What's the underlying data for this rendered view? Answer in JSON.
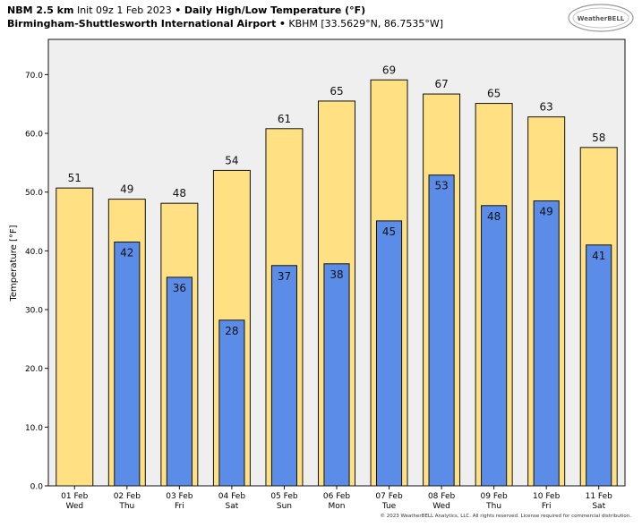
{
  "header": {
    "model": "NBM 2.5 km",
    "init": "Init 09z 1 Feb 2023",
    "sep": "•",
    "product": "Daily High/Low Temperature (°F)",
    "station_name": "Birmingham-Shuttlesworth International Airport",
    "station_info": "KBHM [33.5629°N, 86.7535°W]"
  },
  "logo": {
    "text": "WeatherBELL"
  },
  "copyright": "© 2023 WeatherBELL Analytics, LLC. All rights reserved. License required for commercial distribution.",
  "colors": {
    "high": "#ffe082",
    "low": "#5b8de8",
    "plot_bg": "#efefef",
    "bar_edge": "#111111"
  },
  "chart_data": {
    "type": "bar",
    "title": "Daily High/Low Temperature (°F)",
    "xlabel": "",
    "ylabel": "Temperature [°F]",
    "ylim": [
      0,
      76
    ],
    "yticks": [
      0.0,
      10.0,
      20.0,
      30.0,
      40.0,
      50.0,
      60.0,
      70.0
    ],
    "ytick_labels": [
      "0.0",
      "10.0",
      "20.0",
      "30.0",
      "40.0",
      "50.0",
      "60.0",
      "70.0"
    ],
    "categories": [
      "01 Feb",
      "02 Feb",
      "03 Feb",
      "04 Feb",
      "05 Feb",
      "06 Feb",
      "07 Feb",
      "08 Feb",
      "09 Feb",
      "10 Feb",
      "11 Feb"
    ],
    "weekdays": [
      "Wed",
      "Thu",
      "Fri",
      "Sat",
      "Sun",
      "Mon",
      "Tue",
      "Wed",
      "Thu",
      "Fri",
      "Sat"
    ],
    "series": [
      {
        "name": "High",
        "values": [
          50.7,
          48.8,
          48.1,
          53.7,
          60.8,
          65.5,
          69.1,
          66.7,
          65.1,
          62.8,
          57.6
        ],
        "labels": [
          "51",
          "49",
          "48",
          "54",
          "61",
          "65",
          "69",
          "67",
          "65",
          "63",
          "58"
        ]
      },
      {
        "name": "Low",
        "values": [
          null,
          41.5,
          35.5,
          28.2,
          37.5,
          37.8,
          45.1,
          52.9,
          47.7,
          48.5,
          41.0
        ],
        "labels": [
          "",
          "42",
          "36",
          "28",
          "37",
          "38",
          "45",
          "53",
          "48",
          "49",
          "41"
        ]
      }
    ]
  }
}
